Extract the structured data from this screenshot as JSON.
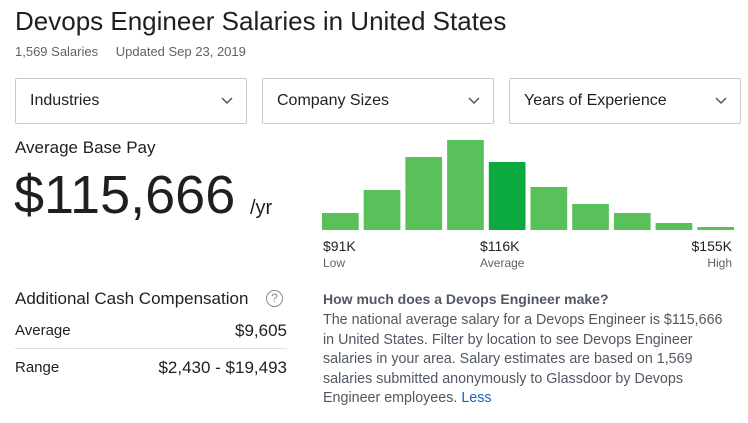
{
  "header": {
    "title": "Devops Engineer Salaries in United States",
    "salary_count": "1,569 Salaries",
    "updated": "Updated Sep 23, 2019"
  },
  "filters": [
    {
      "label": "Industries"
    },
    {
      "label": "Company Sizes"
    },
    {
      "label": "Years of Experience"
    }
  ],
  "average_pay": {
    "label": "Average Base Pay",
    "value": "$115,666",
    "unit": "/yr"
  },
  "chart_data": {
    "type": "bar",
    "values": [
      17,
      40,
      73,
      90,
      68,
      43,
      26,
      17,
      7,
      3
    ],
    "highlight_index": 4,
    "colors": {
      "bar": "#5ac15a",
      "highlight": "#0caa41"
    },
    "ticks": [
      {
        "value": "$91K",
        "sub": "Low"
      },
      {
        "value": "$116K",
        "sub": "Average"
      },
      {
        "value": "$155K",
        "sub": "High"
      }
    ]
  },
  "cash": {
    "title": "Additional Cash Compensation",
    "help_icon": "?",
    "average_label": "Average",
    "average_value": "$9,605",
    "range_label": "Range",
    "range_value": "$2,430 - $19,493"
  },
  "description": {
    "heading": "How much does a Devops Engineer make?",
    "body": "The national average salary for a Devops Engineer is $115,666 in United States. Filter by location to see Devops Engineer salaries in your area. Salary estimates are based on 1,569 salaries submitted anonymously to Glassdoor by Devops Engineer employees.",
    "less_link": "Less"
  }
}
